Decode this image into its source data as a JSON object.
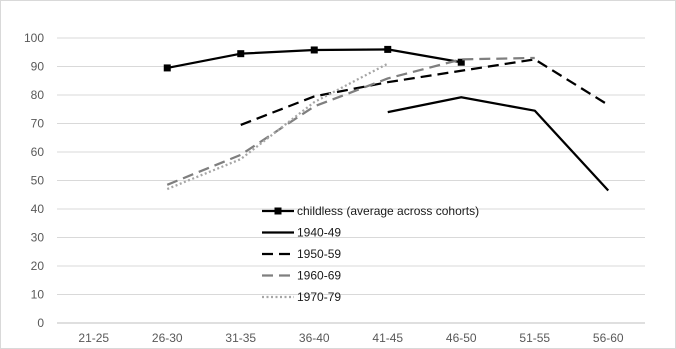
{
  "chart_data": {
    "type": "line",
    "title": "",
    "xlabel": "",
    "ylabel": "",
    "categories": [
      "21-25",
      "26-30",
      "31-35",
      "36-40",
      "41-45",
      "46-50",
      "51-55",
      "56-60"
    ],
    "ylim": [
      0,
      100
    ],
    "yticks": [
      0,
      10,
      20,
      30,
      40,
      50,
      60,
      70,
      80,
      90,
      100
    ],
    "grid": true,
    "legend_position": "bottom-center",
    "series": [
      {
        "name": "childless (average across cohorts)",
        "color": "#000000",
        "dash": "solid",
        "marker": "square",
        "values": [
          null,
          89.5,
          94.5,
          95.8,
          96.0,
          91.5,
          null,
          null
        ]
      },
      {
        "name": "1940-49",
        "color": "#000000",
        "dash": "solid",
        "marker": "none",
        "values": [
          null,
          null,
          null,
          null,
          74.0,
          79.2,
          74.5,
          46.5
        ]
      },
      {
        "name": "1950-59",
        "color": "#000000",
        "dash": "dash",
        "marker": "none",
        "values": [
          null,
          null,
          69.5,
          79.5,
          84.5,
          88.5,
          92.5,
          76.5
        ]
      },
      {
        "name": "1960-69",
        "color": "#7f7f7f",
        "dash": "dash",
        "marker": "none",
        "values": [
          null,
          48.5,
          59.0,
          76.0,
          85.8,
          92.5,
          93.0,
          null
        ]
      },
      {
        "name": "1970-79",
        "color": "#a6a6a6",
        "dash": "dot",
        "marker": "none",
        "values": [
          null,
          47.0,
          57.5,
          77.5,
          91.0,
          null,
          null,
          null
        ]
      }
    ]
  }
}
